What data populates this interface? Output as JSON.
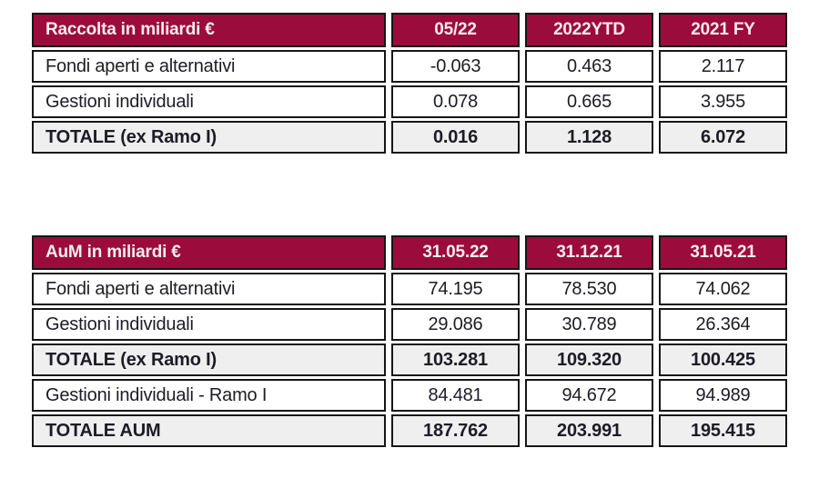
{
  "colors": {
    "header_bg": "#9b0b3c",
    "header_text": "#f8ecf1",
    "border": "#161616",
    "total_row_bg": "#efefef",
    "body_text": "#1c1c26"
  },
  "tables": [
    {
      "title": "Raccolta in miliardi €",
      "columns": [
        "05/22",
        "2022YTD",
        "2021 FY"
      ],
      "rows": [
        {
          "label": "Fondi aperti e alternativi",
          "values": [
            "-0.063",
            "0.463",
            "2.117"
          ],
          "total": false
        },
        {
          "label": "Gestioni individuali",
          "values": [
            "0.078",
            "0.665",
            "3.955"
          ],
          "total": false
        },
        {
          "label": "TOTALE (ex Ramo I)",
          "values": [
            "0.016",
            "1.128",
            "6.072"
          ],
          "total": true
        }
      ]
    },
    {
      "title": "AuM in miliardi €",
      "columns": [
        "31.05.22",
        "31.12.21",
        "31.05.21"
      ],
      "rows": [
        {
          "label": "Fondi aperti e alternativi",
          "values": [
            "74.195",
            "78.530",
            "74.062"
          ],
          "total": false
        },
        {
          "label": "Gestioni individuali",
          "values": [
            "29.086",
            "30.789",
            "26.364"
          ],
          "total": false
        },
        {
          "label": "TOTALE (ex Ramo I)",
          "values": [
            "103.281",
            "109.320",
            "100.425"
          ],
          "total": true
        },
        {
          "label": "Gestioni individuali - Ramo I",
          "values": [
            "84.481",
            "94.672",
            "94.989"
          ],
          "total": false
        },
        {
          "label": "TOTALE AUM",
          "values": [
            "187.762",
            "203.991",
            "195.415"
          ],
          "total": true
        }
      ]
    }
  ],
  "chart_data": [
    {
      "type": "table",
      "title": "Raccolta in miliardi €",
      "categories": [
        "05/22",
        "2022YTD",
        "2021 FY"
      ],
      "series": [
        {
          "name": "Fondi aperti e alternativi",
          "values": [
            -0.063,
            0.463,
            2.117
          ]
        },
        {
          "name": "Gestioni individuali",
          "values": [
            0.078,
            0.665,
            3.955
          ]
        },
        {
          "name": "TOTALE (ex Ramo I)",
          "values": [
            0.016,
            1.128,
            6.072
          ]
        }
      ]
    },
    {
      "type": "table",
      "title": "AuM in miliardi €",
      "categories": [
        "31.05.22",
        "31.12.21",
        "31.05.21"
      ],
      "series": [
        {
          "name": "Fondi aperti e alternativi",
          "values": [
            74.195,
            78.53,
            74.062
          ]
        },
        {
          "name": "Gestioni individuali",
          "values": [
            29.086,
            30.789,
            26.364
          ]
        },
        {
          "name": "TOTALE (ex Ramo I)",
          "values": [
            103.281,
            109.32,
            100.425
          ]
        },
        {
          "name": "Gestioni individuali - Ramo I",
          "values": [
            84.481,
            94.672,
            94.989
          ]
        },
        {
          "name": "TOTALE AUM",
          "values": [
            187.762,
            203.991,
            195.415
          ]
        }
      ]
    }
  ]
}
